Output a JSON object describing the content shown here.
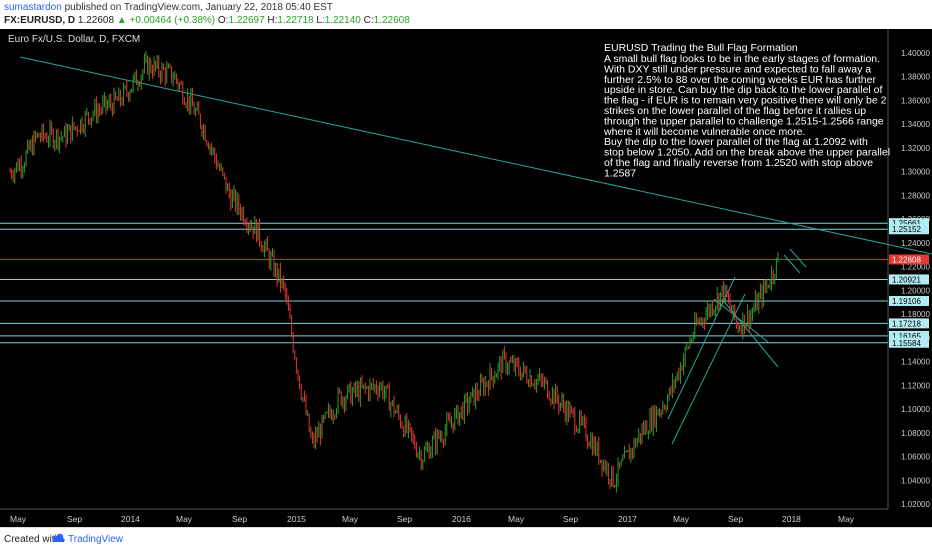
{
  "header": {
    "author": "sumastardon",
    "published_text": "published on TradingView.com, January 22, 2018 05:40 EST",
    "symbol": "FX:EURUSD, D",
    "last": "1.22608",
    "change": "▲ +0.00464 (+0.38%)",
    "open_label": "O:",
    "open": "1.22697",
    "high_label": "H:",
    "high": "1.22718",
    "low_label": "L:",
    "low": "1.22140",
    "close_label": "C:",
    "close": "1.22608"
  },
  "legend_title": "Euro Fx/U.S. Dollar, D, FXCM",
  "annotation": {
    "title": "EURUSD  Trading the Bull Flag Formation",
    "lines": [
      "A small bull flag looks to be in the early stages of formation.",
      "With DXY still under pressure and expected to fall away a",
      "further 2.5% to 88 over the coming weeks EUR has further",
      "upside in store. Can buy the dip back to the lower parallel of",
      "the flag - if EUR is to remain very positive there will only be 2",
      "strikes on the lower parallel of the flag before it rallies up",
      "through the upper parallel to challenge 1.2515-1.2566 range",
      "where it will become vulnerable once more.",
      "Buy the dip to the lower parallel of the flag at 1.2092 with",
      "stop below 1.2050. Add on the break above the upper parallel",
      "of the flag and finally reverse from 1.2520 with stop above",
      "1.2587"
    ]
  },
  "price_axis": [
    "1.40000",
    "1.38000",
    "1.36000",
    "1.34000",
    "1.32000",
    "1.30000",
    "1.28000",
    "1.26000",
    "1.24000",
    "1.22000",
    "1.20000",
    "1.18000",
    "1.16000",
    "1.14000",
    "1.12000",
    "1.10000",
    "1.08000",
    "1.06000",
    "1.04000",
    "1.02000"
  ],
  "level_labels": [
    {
      "text": "1.25661",
      "price": 1.2566,
      "color": "#7fd4e0"
    },
    {
      "text": "1.25152",
      "price": 1.2515,
      "color": "#7fd4e0"
    },
    {
      "text": "1.22608",
      "price": 1.22608,
      "color": "#e53935"
    },
    {
      "text": "1.20921",
      "price": 1.2092,
      "color": "#7fd4e0"
    },
    {
      "text": "1.19106",
      "price": 1.19106,
      "color": "#7fd4e0"
    },
    {
      "text": "1.17218",
      "price": 1.17218,
      "color": "#7fd4e0"
    },
    {
      "text": "1.16165",
      "price": 1.16165,
      "color": "#7fd4e0"
    },
    {
      "text": "1.15584",
      "price": 1.15584,
      "color": "#7fd4e0"
    }
  ],
  "time_axis": [
    "May",
    "Sep",
    "2014",
    "May",
    "Sep",
    "2015",
    "May",
    "Sep",
    "2016",
    "May",
    "Sep",
    "2017",
    "May",
    "Sep",
    "2018",
    "May"
  ],
  "footer": {
    "created": "Created with",
    "brand": "TradingView"
  },
  "colors": {
    "background": "#000000",
    "bull": "#2ca02c",
    "bear": "#e53935",
    "line": "#26a69a",
    "level": "#7fd4e0"
  },
  "chart_data": {
    "type": "candlestick",
    "instrument": "Euro Fx/U.S. Dollar",
    "timeframe": "D",
    "ylim": [
      1.01,
      1.415
    ],
    "path_points": [
      {
        "t": "2013-05",
        "p": 1.3
      },
      {
        "t": "2013-06",
        "p": 1.31
      },
      {
        "t": "2013-07",
        "p": 1.33
      },
      {
        "t": "2013-09",
        "p": 1.33
      },
      {
        "t": "2013-11",
        "p": 1.35
      },
      {
        "t": "2014-01",
        "p": 1.36
      },
      {
        "t": "2014-03",
        "p": 1.39
      },
      {
        "t": "2014-05",
        "p": 1.38
      },
      {
        "t": "2014-07",
        "p": 1.34
      },
      {
        "t": "2014-09",
        "p": 1.28
      },
      {
        "t": "2014-11",
        "p": 1.25
      },
      {
        "t": "2015-01",
        "p": 1.2
      },
      {
        "t": "2015-02",
        "p": 1.13
      },
      {
        "t": "2015-03",
        "p": 1.07
      },
      {
        "t": "2015-05",
        "p": 1.11
      },
      {
        "t": "2015-08",
        "p": 1.12
      },
      {
        "t": "2015-11",
        "p": 1.06
      },
      {
        "t": "2016-02",
        "p": 1.1
      },
      {
        "t": "2016-05",
        "p": 1.14
      },
      {
        "t": "2016-08",
        "p": 1.12
      },
      {
        "t": "2016-11",
        "p": 1.08
      },
      {
        "t": "2017-01",
        "p": 1.04
      },
      {
        "t": "2017-03",
        "p": 1.08
      },
      {
        "t": "2017-05",
        "p": 1.11
      },
      {
        "t": "2017-07",
        "p": 1.17
      },
      {
        "t": "2017-09",
        "p": 1.2
      },
      {
        "t": "2017-10",
        "p": 1.17
      },
      {
        "t": "2017-11",
        "p": 1.18
      },
      {
        "t": "2017-12",
        "p": 1.2
      },
      {
        "t": "2018-01",
        "p": 1.226
      }
    ]
  }
}
